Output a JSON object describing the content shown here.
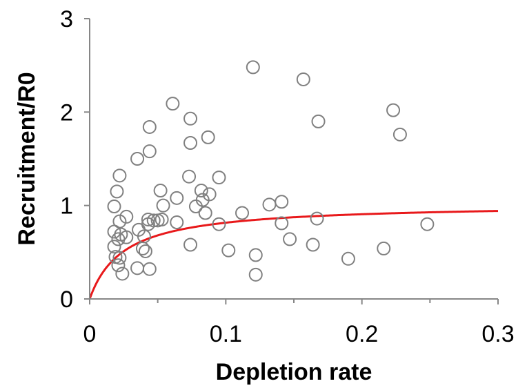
{
  "chart_data": {
    "type": "scatter",
    "title": "",
    "xlabel": "Depletion rate",
    "ylabel": "Recruitment/R0",
    "xlim": [
      0,
      0.3
    ],
    "ylim": [
      0,
      3
    ],
    "x_ticks": [
      0,
      0.1,
      0.2,
      0.3
    ],
    "x_tick_labels": [
      "0",
      "0.1",
      "0.2",
      "0.3"
    ],
    "y_ticks": [
      0,
      1,
      2,
      3
    ],
    "y_tick_labels": [
      "0",
      "1",
      "2",
      "3"
    ],
    "grid": false,
    "legend": "none",
    "series": [
      {
        "kind": "scatter",
        "marker": "open-circle",
        "color": "#808080",
        "points": [
          [
            0.018,
            0.99
          ],
          [
            0.018,
            0.72
          ],
          [
            0.018,
            0.56
          ],
          [
            0.019,
            0.45
          ],
          [
            0.02,
            1.15
          ],
          [
            0.021,
            0.64
          ],
          [
            0.021,
            0.36
          ],
          [
            0.022,
            0.44
          ],
          [
            0.022,
            1.32
          ],
          [
            0.022,
            0.83
          ],
          [
            0.023,
            0.69
          ],
          [
            0.024,
            0.27
          ],
          [
            0.027,
            0.88
          ],
          [
            0.027,
            0.66
          ],
          [
            0.035,
            0.33
          ],
          [
            0.035,
            1.5
          ],
          [
            0.036,
            0.74
          ],
          [
            0.039,
            0.54
          ],
          [
            0.04,
            0.67
          ],
          [
            0.041,
            0.51
          ],
          [
            0.043,
            0.85
          ],
          [
            0.043,
            0.8
          ],
          [
            0.044,
            0.32
          ],
          [
            0.044,
            1.58
          ],
          [
            0.044,
            1.84
          ],
          [
            0.047,
            0.84
          ],
          [
            0.05,
            0.84
          ],
          [
            0.052,
            1.16
          ],
          [
            0.054,
            1.0
          ],
          [
            0.053,
            0.85
          ],
          [
            0.061,
            2.09
          ],
          [
            0.064,
            1.08
          ],
          [
            0.064,
            0.82
          ],
          [
            0.073,
            1.31
          ],
          [
            0.074,
            1.67
          ],
          [
            0.074,
            1.93
          ],
          [
            0.074,
            0.58
          ],
          [
            0.078,
            0.99
          ],
          [
            0.082,
            1.16
          ],
          [
            0.083,
            1.06
          ],
          [
            0.085,
            0.92
          ],
          [
            0.087,
            1.73
          ],
          [
            0.088,
            1.12
          ],
          [
            0.095,
            0.8
          ],
          [
            0.095,
            1.3
          ],
          [
            0.102,
            0.52
          ],
          [
            0.112,
            0.92
          ],
          [
            0.12,
            2.48
          ],
          [
            0.122,
            0.47
          ],
          [
            0.122,
            0.26
          ],
          [
            0.132,
            1.01
          ],
          [
            0.141,
            1.04
          ],
          [
            0.141,
            0.81
          ],
          [
            0.147,
            0.64
          ],
          [
            0.157,
            2.35
          ],
          [
            0.164,
            0.58
          ],
          [
            0.167,
            0.86
          ],
          [
            0.168,
            1.9
          ],
          [
            0.19,
            0.43
          ],
          [
            0.216,
            0.54
          ],
          [
            0.223,
            2.02
          ],
          [
            0.228,
            1.76
          ],
          [
            0.248,
            0.8
          ]
        ]
      },
      {
        "kind": "line",
        "model": "Beverton-Holt fit",
        "color": "#e8191b",
        "a": 1.02,
        "b": 0.025
      }
    ]
  }
}
